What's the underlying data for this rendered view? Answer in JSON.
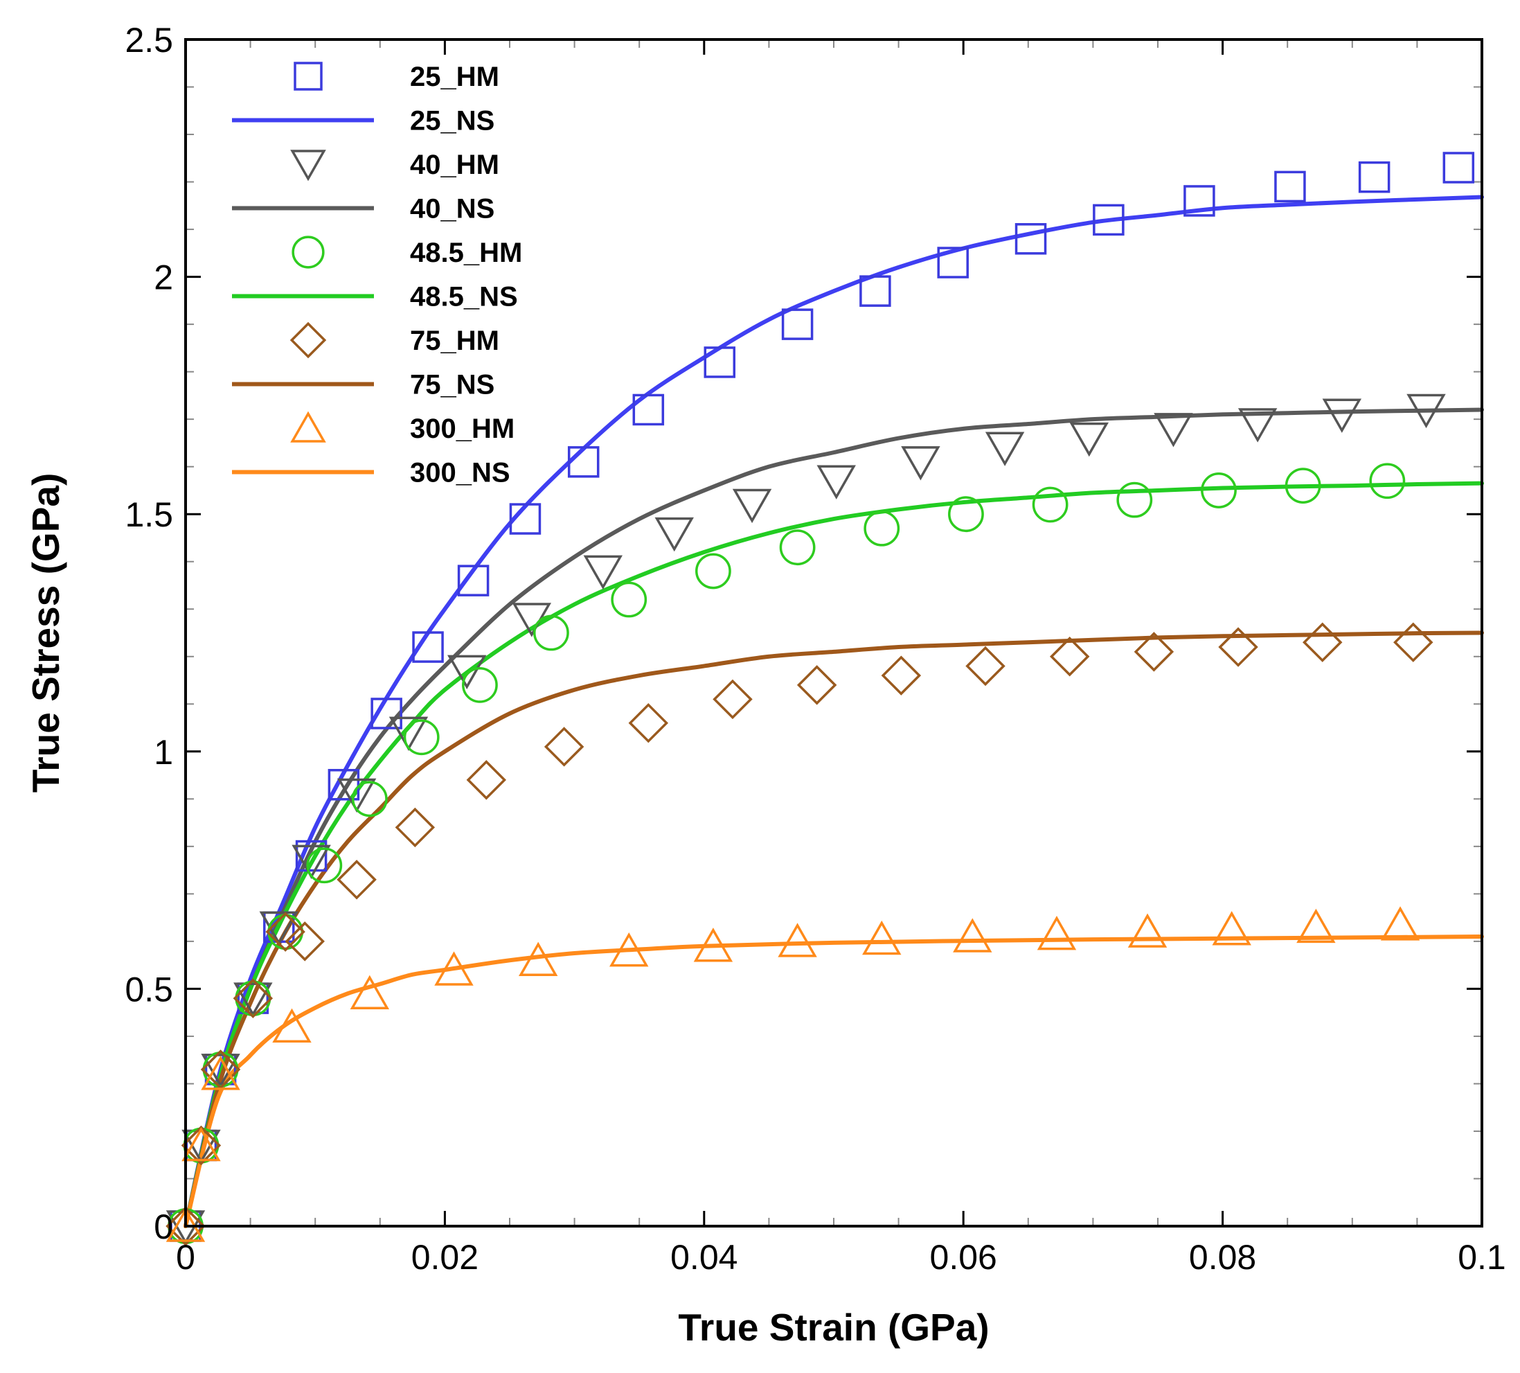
{
  "chart_data": {
    "type": "line",
    "title": "",
    "xlabel": "True Strain (GPa)",
    "ylabel": "True Stress (GPa)",
    "xlim": [
      0,
      0.1
    ],
    "ylim": [
      0,
      2.5
    ],
    "x_ticks": [
      0,
      0.02,
      0.04,
      0.06,
      0.08,
      0.1
    ],
    "x_tick_labels": [
      "0",
      "0.02",
      "0.04",
      "0.06",
      "0.08",
      "0.1"
    ],
    "y_ticks": [
      0,
      0.5,
      1,
      1.5,
      2,
      2.5
    ],
    "y_tick_labels": [
      "0",
      "0.5",
      "1",
      "1.5",
      "2",
      "2.5"
    ],
    "legend_position": "top-left",
    "series": [
      {
        "name": "25_HM",
        "kind": "markers",
        "marker": "square",
        "color": "#3b3bdd",
        "x": [
          0,
          0.0012,
          0.0027,
          0.0052,
          0.0072,
          0.0097,
          0.0122,
          0.0155,
          0.0187,
          0.0222,
          0.0262,
          0.0307,
          0.0357,
          0.0412,
          0.0472,
          0.0532,
          0.0592,
          0.0652,
          0.0712,
          0.0782,
          0.0852,
          0.0917,
          0.0982
        ],
        "y": [
          0,
          0.17,
          0.33,
          0.48,
          0.63,
          0.78,
          0.93,
          1.08,
          1.22,
          1.36,
          1.49,
          1.61,
          1.72,
          1.82,
          1.9,
          1.97,
          2.03,
          2.08,
          2.12,
          2.16,
          2.19,
          2.21,
          2.23
        ]
      },
      {
        "name": "25_NS",
        "kind": "line",
        "color": "#3f3ff2",
        "x": [
          0,
          0.0025,
          0.005,
          0.0075,
          0.01,
          0.0125,
          0.015,
          0.0175,
          0.02,
          0.025,
          0.03,
          0.035,
          0.04,
          0.045,
          0.05,
          0.055,
          0.06,
          0.065,
          0.07,
          0.075,
          0.08,
          0.085,
          0.09,
          0.095,
          0.1
        ],
        "y": [
          0,
          0.31,
          0.52,
          0.68,
          0.84,
          0.97,
          1.09,
          1.2,
          1.3,
          1.48,
          1.62,
          1.74,
          1.83,
          1.91,
          1.97,
          2.02,
          2.06,
          2.09,
          2.115,
          2.13,
          2.145,
          2.152,
          2.158,
          2.163,
          2.168
        ]
      },
      {
        "name": "40_HM",
        "kind": "markers",
        "marker": "triangle-down",
        "color": "#555555",
        "x": [
          0,
          0.0012,
          0.0027,
          0.0052,
          0.0072,
          0.0097,
          0.0132,
          0.0172,
          0.0217,
          0.0267,
          0.0322,
          0.0377,
          0.0437,
          0.0502,
          0.0567,
          0.0632,
          0.0697,
          0.0762,
          0.0827,
          0.0892,
          0.0957
        ],
        "y": [
          0,
          0.17,
          0.33,
          0.48,
          0.63,
          0.77,
          0.91,
          1.04,
          1.17,
          1.28,
          1.38,
          1.46,
          1.52,
          1.57,
          1.61,
          1.64,
          1.66,
          1.68,
          1.69,
          1.71,
          1.72
        ]
      },
      {
        "name": "40_NS",
        "kind": "line",
        "color": "#5a5a5a",
        "x": [
          0,
          0.0025,
          0.005,
          0.0075,
          0.01,
          0.0125,
          0.015,
          0.0175,
          0.02,
          0.025,
          0.03,
          0.035,
          0.04,
          0.045,
          0.05,
          0.055,
          0.06,
          0.065,
          0.07,
          0.075,
          0.08,
          0.085,
          0.09,
          0.095,
          0.1
        ],
        "y": [
          0,
          0.3,
          0.5,
          0.66,
          0.81,
          0.93,
          1.03,
          1.11,
          1.18,
          1.31,
          1.41,
          1.49,
          1.55,
          1.6,
          1.63,
          1.66,
          1.68,
          1.69,
          1.7,
          1.705,
          1.71,
          1.713,
          1.716,
          1.718,
          1.72
        ]
      },
      {
        "name": "48.5_HM",
        "kind": "markers",
        "marker": "circle",
        "color": "#2ecc1f",
        "x": [
          0,
          0.0012,
          0.0027,
          0.0052,
          0.0077,
          0.0107,
          0.0142,
          0.0182,
          0.0227,
          0.0282,
          0.0342,
          0.0407,
          0.0472,
          0.0537,
          0.0602,
          0.0667,
          0.0732,
          0.0797,
          0.0862,
          0.0927
        ],
        "y": [
          0,
          0.17,
          0.33,
          0.48,
          0.62,
          0.76,
          0.9,
          1.03,
          1.14,
          1.25,
          1.32,
          1.38,
          1.43,
          1.47,
          1.5,
          1.52,
          1.53,
          1.55,
          1.56,
          1.57
        ]
      },
      {
        "name": "48.5_NS",
        "kind": "line",
        "color": "#22cc22",
        "x": [
          0,
          0.0025,
          0.005,
          0.0075,
          0.01,
          0.0125,
          0.015,
          0.0175,
          0.02,
          0.025,
          0.03,
          0.035,
          0.04,
          0.045,
          0.05,
          0.055,
          0.06,
          0.065,
          0.07,
          0.075,
          0.08,
          0.085,
          0.09,
          0.095,
          0.1
        ],
        "y": [
          0,
          0.3,
          0.5,
          0.65,
          0.78,
          0.89,
          0.98,
          1.06,
          1.13,
          1.23,
          1.31,
          1.37,
          1.42,
          1.46,
          1.49,
          1.51,
          1.525,
          1.535,
          1.545,
          1.55,
          1.555,
          1.558,
          1.56,
          1.563,
          1.565
        ]
      },
      {
        "name": "75_HM",
        "kind": "markers",
        "marker": "diamond",
        "color": "#9a5a1e",
        "x": [
          0,
          0.0012,
          0.0027,
          0.0052,
          0.0077,
          0.0092,
          0.0132,
          0.0177,
          0.0232,
          0.0292,
          0.0357,
          0.0422,
          0.0487,
          0.0552,
          0.0617,
          0.0682,
          0.0747,
          0.0812,
          0.0877,
          0.0947
        ],
        "y": [
          0,
          0.17,
          0.33,
          0.48,
          0.62,
          0.6,
          0.73,
          0.84,
          0.94,
          1.01,
          1.06,
          1.11,
          1.14,
          1.16,
          1.18,
          1.2,
          1.21,
          1.22,
          1.23,
          1.23
        ]
      },
      {
        "name": "75_NS",
        "kind": "line",
        "color": "#a0581a",
        "x": [
          0,
          0.0025,
          0.005,
          0.0075,
          0.01,
          0.0125,
          0.015,
          0.0175,
          0.02,
          0.025,
          0.03,
          0.035,
          0.04,
          0.045,
          0.05,
          0.055,
          0.06,
          0.065,
          0.07,
          0.075,
          0.08,
          0.085,
          0.09,
          0.095,
          0.1
        ],
        "y": [
          0,
          0.29,
          0.47,
          0.61,
          0.72,
          0.81,
          0.88,
          0.95,
          1.0,
          1.08,
          1.13,
          1.16,
          1.18,
          1.2,
          1.21,
          1.22,
          1.225,
          1.23,
          1.235,
          1.24,
          1.243,
          1.245,
          1.247,
          1.249,
          1.25
        ]
      },
      {
        "name": "300_HM",
        "kind": "markers",
        "marker": "triangle-up",
        "color": "#ff8a1a",
        "x": [
          0,
          0.0012,
          0.0027,
          0.0082,
          0.0142,
          0.0207,
          0.0272,
          0.0342,
          0.0407,
          0.0472,
          0.0537,
          0.0607,
          0.0672,
          0.0742,
          0.0807,
          0.0872,
          0.0937
        ],
        "y": [
          0,
          0.17,
          0.32,
          0.42,
          0.49,
          0.54,
          0.56,
          0.58,
          0.59,
          0.6,
          0.605,
          0.61,
          0.615,
          0.62,
          0.625,
          0.63,
          0.635
        ]
      },
      {
        "name": "300_NS",
        "kind": "line",
        "color": "#ff8a1a",
        "x": [
          0,
          0.0025,
          0.005,
          0.0075,
          0.01,
          0.0125,
          0.015,
          0.0175,
          0.02,
          0.025,
          0.03,
          0.035,
          0.04,
          0.05,
          0.06,
          0.07,
          0.08,
          0.09,
          0.1
        ],
        "y": [
          0,
          0.27,
          0.36,
          0.42,
          0.46,
          0.49,
          0.51,
          0.53,
          0.54,
          0.56,
          0.575,
          0.583,
          0.59,
          0.597,
          0.601,
          0.604,
          0.606,
          0.608,
          0.61
        ]
      }
    ]
  }
}
